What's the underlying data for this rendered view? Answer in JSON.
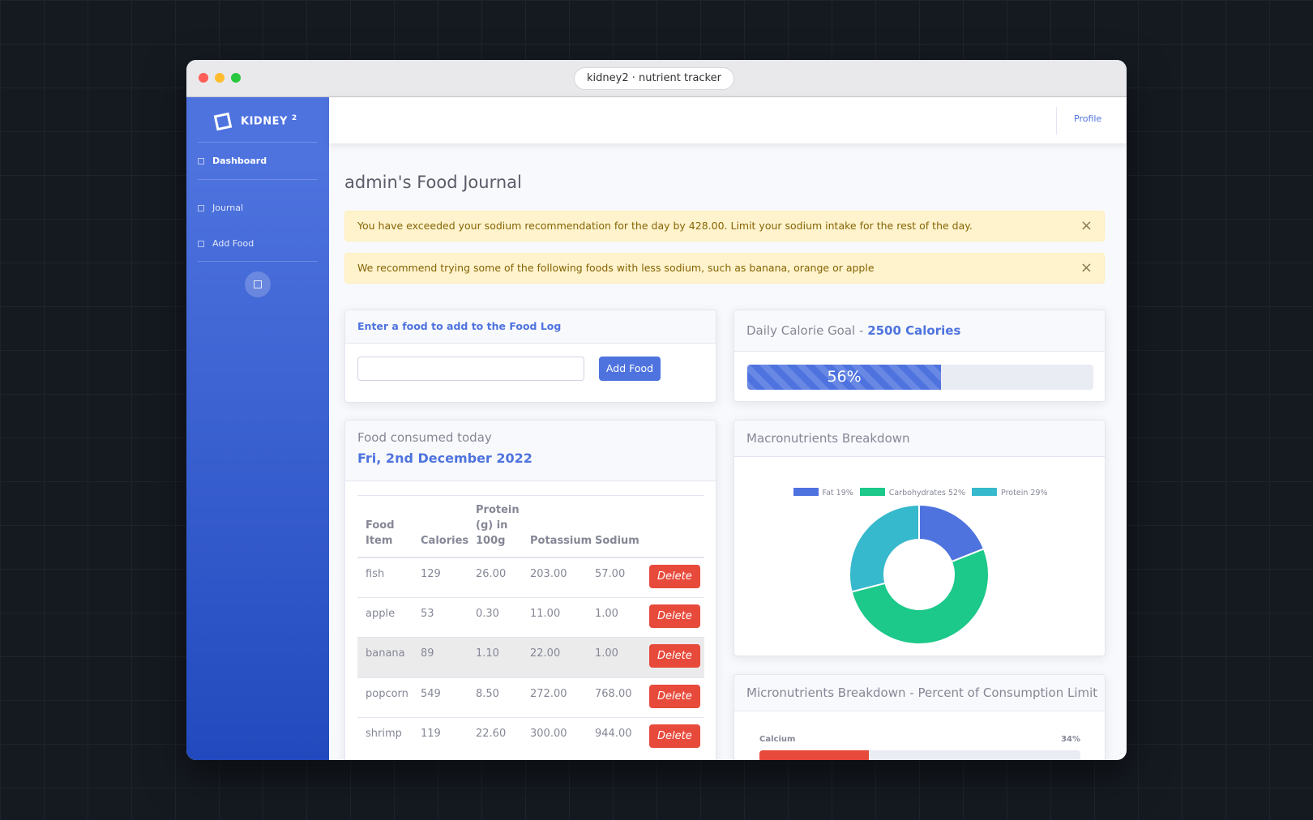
{
  "window": {
    "title": "kidney2 · nutrient tracker"
  },
  "sidebar": {
    "brand": "KIDNEY",
    "brand_sup": "2",
    "nav": [
      "Dashboard",
      "Journal",
      "Add Food"
    ]
  },
  "topbar": {
    "profile": "Profile"
  },
  "page_title": "admin's Food Journal",
  "alerts": [
    "You have exceeded your sodium recommendation for the day by 428.00. Limit your sodium intake for the rest of the day.",
    "We recommend trying some of the following foods with less sodium, such as banana, orange or apple"
  ],
  "add_food": {
    "header": "Enter a food to add to the Food Log",
    "button": "Add Food"
  },
  "calorie_goal": {
    "label": "Daily Calorie Goal - ",
    "goal": "2500 Calories",
    "progress": {
      "value": 56,
      "label": "56%"
    }
  },
  "food_log": {
    "header": "Food consumed today",
    "date": "Fri, 2nd December 2022",
    "columns": [
      "Food Item",
      "Calories",
      "Protein (g) in 100g",
      "Potassium",
      "Sodium"
    ],
    "delete_label": "Delete",
    "rows": [
      [
        "fish",
        "129",
        "26.00",
        "203.00",
        "57.00"
      ],
      [
        "apple",
        "53",
        "0.30",
        "11.00",
        "1.00"
      ],
      [
        "banana",
        "89",
        "1.10",
        "22.00",
        "1.00"
      ],
      [
        "popcorn",
        "549",
        "8.50",
        "272.00",
        "768.00"
      ],
      [
        "shrimp",
        "119",
        "22.60",
        "300.00",
        "944.00"
      ]
    ]
  },
  "macros": {
    "title": "Macronutrients Breakdown",
    "type": "doughnut",
    "series": [
      {
        "name": "Fat 19%",
        "value": 19,
        "color": "#4e73df"
      },
      {
        "name": "Carbohydrates 52%",
        "value": 52,
        "color": "#1cc88a"
      },
      {
        "name": "Protein 29%",
        "value": 29,
        "color": "#36b9cc"
      }
    ]
  },
  "micros": {
    "title": "Micronutrients Breakdown - Percent of Consumption Limit",
    "bars": [
      {
        "name": "Calcium",
        "value": 34,
        "label": "34%",
        "color": "#e74a3b"
      }
    ]
  }
}
